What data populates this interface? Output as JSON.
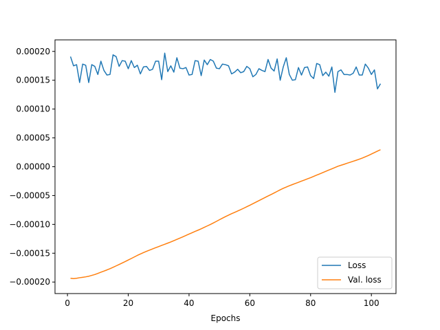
{
  "chart_data": {
    "type": "line",
    "title": "",
    "xlabel": "Epochs",
    "ylabel": "",
    "xlim": [
      -4.1,
      108.1
    ],
    "ylim": [
      -0.00022,
      0.00022
    ],
    "xticks": [
      0,
      20,
      40,
      60,
      80,
      100
    ],
    "xtick_labels": [
      "0",
      "20",
      "40",
      "60",
      "80",
      "100"
    ],
    "yticks": [
      -0.0002,
      -0.00015,
      -0.0001,
      -5e-05,
      0,
      5e-05,
      0.0001,
      0.00015,
      0.0002
    ],
    "ytick_labels": [
      "−0.00020",
      "−0.00015",
      "−0.00010",
      "−0.00005",
      "0.00000",
      "0.00005",
      "0.00010",
      "0.00015",
      "0.00020"
    ],
    "grid": false,
    "legend_position": "lower-right",
    "series": [
      {
        "name": "Loss",
        "color": "#1f77b4",
        "x": [
          1,
          2,
          3,
          4,
          5,
          6,
          7,
          8,
          9,
          10,
          11,
          12,
          13,
          14,
          15,
          16,
          17,
          18,
          19,
          20,
          21,
          22,
          23,
          24,
          25,
          26,
          27,
          28,
          29,
          30,
          31,
          32,
          33,
          34,
          35,
          36,
          37,
          38,
          39,
          40,
          41,
          42,
          43,
          44,
          45,
          46,
          47,
          48,
          49,
          50,
          51,
          52,
          53,
          54,
          55,
          56,
          57,
          58,
          59,
          60,
          61,
          62,
          63,
          64,
          65,
          66,
          67,
          68,
          69,
          70,
          71,
          72,
          73,
          74,
          75,
          76,
          77,
          78,
          79,
          80,
          81,
          82,
          83,
          84,
          85,
          86,
          87,
          88,
          89,
          90,
          91,
          92,
          93,
          94,
          95,
          96,
          97,
          98,
          99,
          100,
          101,
          102,
          103
        ],
        "y": [
          0.000191,
          0.000175,
          0.000177,
          0.000146,
          0.000178,
          0.000176,
          0.000146,
          0.000177,
          0.000174,
          0.00016,
          0.000183,
          0.000167,
          0.000159,
          0.00016,
          0.000194,
          0.000191,
          0.000174,
          0.000184,
          0.000183,
          0.00017,
          0.000184,
          0.000172,
          0.000176,
          0.000161,
          0.000173,
          0.000174,
          0.000167,
          0.000169,
          0.000183,
          0.000183,
          0.000151,
          0.000197,
          0.000165,
          0.000175,
          0.000164,
          0.000189,
          0.000171,
          0.00017,
          0.000172,
          0.000159,
          0.00016,
          0.000184,
          0.000183,
          0.000158,
          0.000185,
          0.000177,
          0.000186,
          0.000183,
          0.000171,
          0.00017,
          0.000178,
          0.000177,
          0.000175,
          0.000161,
          0.000164,
          0.000169,
          0.000163,
          0.000165,
          0.000174,
          0.00017,
          0.000156,
          0.00016,
          0.00017,
          0.000167,
          0.000165,
          0.000186,
          0.000171,
          0.000166,
          0.000187,
          0.00015,
          0.000173,
          0.000189,
          0.00016,
          0.00015,
          0.000151,
          0.000172,
          0.000159,
          0.000172,
          0.000173,
          0.000158,
          0.000153,
          0.000179,
          0.000177,
          0.000158,
          0.000164,
          0.000157,
          0.000173,
          0.000129,
          0.000165,
          0.000168,
          0.00016,
          0.00016,
          0.000159,
          0.000162,
          0.000173,
          0.000159,
          0.000159,
          0.000178,
          0.000171,
          0.00016,
          0.000168,
          0.000135,
          0.000144
        ]
      },
      {
        "name": "Val. loss",
        "color": "#ff7f0e",
        "x": [
          1,
          2,
          3,
          4,
          5,
          6,
          7,
          8,
          9,
          10,
          11,
          12,
          13,
          14,
          15,
          16,
          17,
          18,
          19,
          20,
          21,
          22,
          23,
          24,
          25,
          26,
          27,
          28,
          29,
          30,
          31,
          32,
          33,
          34,
          35,
          36,
          37,
          38,
          39,
          40,
          41,
          42,
          43,
          44,
          45,
          46,
          47,
          48,
          49,
          50,
          51,
          52,
          53,
          54,
          55,
          56,
          57,
          58,
          59,
          60,
          61,
          62,
          63,
          64,
          65,
          66,
          67,
          68,
          69,
          70,
          71,
          72,
          73,
          74,
          75,
          76,
          77,
          78,
          79,
          80,
          81,
          82,
          83,
          84,
          85,
          86,
          87,
          88,
          89,
          90,
          91,
          92,
          93,
          94,
          95,
          96,
          97,
          98,
          99,
          100,
          101,
          102,
          103
        ],
        "y": [
          -0.0001935,
          -0.000194,
          -0.0001935,
          -0.0001925,
          -0.0001918,
          -0.000191,
          -0.00019,
          -0.0001885,
          -0.000187,
          -0.000185,
          -0.000183,
          -0.000181,
          -0.000179,
          -0.0001768,
          -0.0001745,
          -0.000172,
          -0.0001695,
          -0.000167,
          -0.0001645,
          -0.0001618,
          -0.0001592,
          -0.0001565,
          -0.0001538,
          -0.0001513,
          -0.000149,
          -0.0001468,
          -0.0001446,
          -0.0001425,
          -0.0001405,
          -0.0001385,
          -0.0001365,
          -0.0001345,
          -0.0001325,
          -0.0001305,
          -0.0001283,
          -0.000126,
          -0.0001238,
          -0.0001215,
          -0.0001192,
          -0.0001168,
          -0.0001145,
          -0.0001122,
          -0.00011,
          -0.0001077,
          -0.0001052,
          -0.0001027,
          -0.0001002,
          -9.75e-05,
          -9.48e-05,
          -9.2e-05,
          -8.92e-05,
          -8.65e-05,
          -8.4e-05,
          -8.15e-05,
          -7.92e-05,
          -7.68e-05,
          -7.45e-05,
          -7.2e-05,
          -6.94e-05,
          -6.68e-05,
          -6.42e-05,
          -6.15e-05,
          -5.88e-05,
          -5.61e-05,
          -5.34e-05,
          -5.08e-05,
          -4.82e-05,
          -4.55e-05,
          -4.28e-05,
          -4e-05,
          -3.75e-05,
          -3.52e-05,
          -3.3e-05,
          -3.1e-05,
          -2.9e-05,
          -2.7e-05,
          -2.5e-05,
          -2.3e-05,
          -2.1e-05,
          -1.9e-05,
          -1.68e-05,
          -1.46e-05,
          -1.24e-05,
          -1.02e-05,
          -8e-06,
          -5.8e-06,
          -3.6e-06,
          -1.4e-06,
          8e-07,
          2.5e-06,
          4.2e-06,
          6e-06,
          7.7e-06,
          9.5e-06,
          1.12e-05,
          1.3e-05,
          1.5e-05,
          1.72e-05,
          1.95e-05,
          2.2e-05,
          2.45e-05,
          2.7e-05,
          2.95e-05
        ]
      }
    ]
  }
}
